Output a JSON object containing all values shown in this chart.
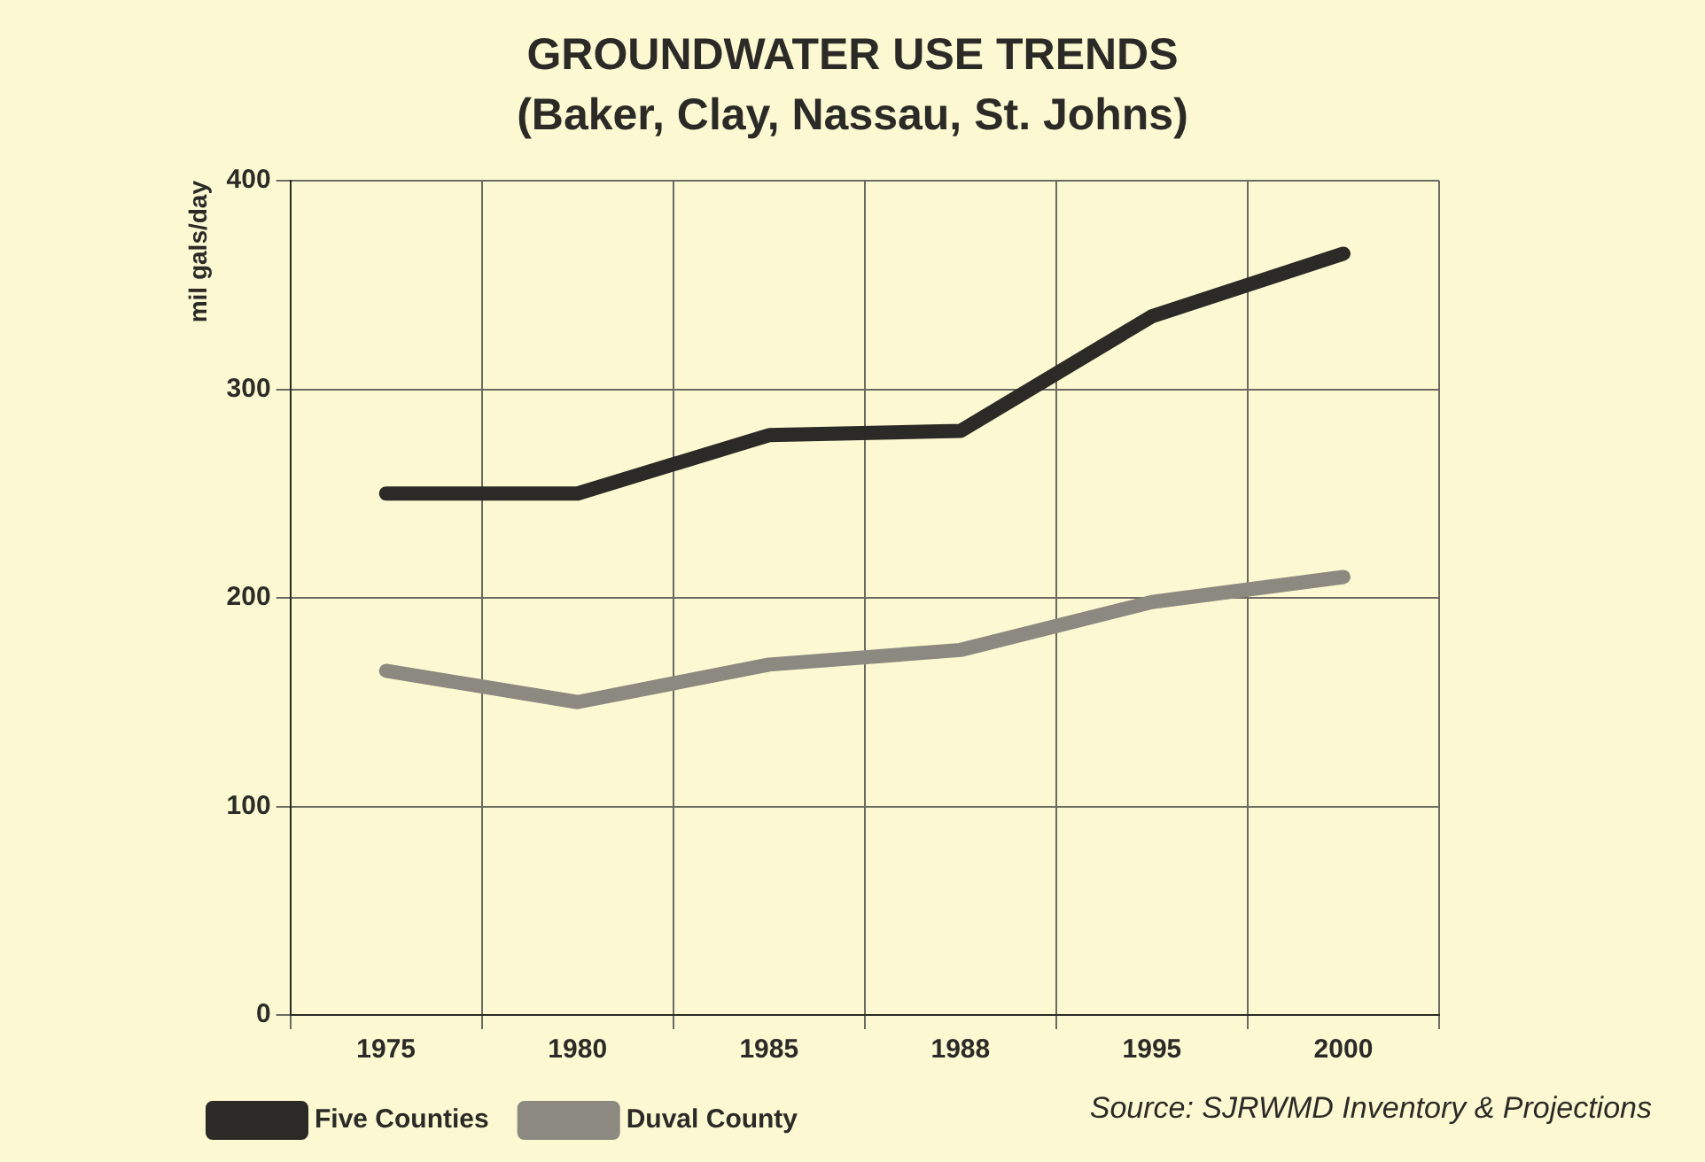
{
  "chart_data": {
    "type": "line",
    "title": "GROUNDWATER USE TRENDS",
    "subtitle": "(Baker, Clay, Nassau, St. Johns)",
    "ylabel": "mil gals/day",
    "categories": [
      "1975",
      "1980",
      "1985",
      "1988",
      "1995",
      "2000"
    ],
    "series": [
      {
        "name": "Five Counties",
        "color": "#2b2a26",
        "values": [
          250,
          250,
          278,
          280,
          335,
          365
        ]
      },
      {
        "name": "Duval County",
        "color": "#8c8a80",
        "values": [
          165,
          150,
          168,
          175,
          198,
          210
        ]
      }
    ],
    "ylim": [
      0,
      400
    ],
    "yticks": [
      0,
      100,
      200,
      300,
      400
    ],
    "grid": true,
    "legend": "bottom left",
    "marker": "none",
    "line_style": "solid",
    "annotations": [
      "Source:  SJRWMD Inventory & Projections"
    ]
  }
}
